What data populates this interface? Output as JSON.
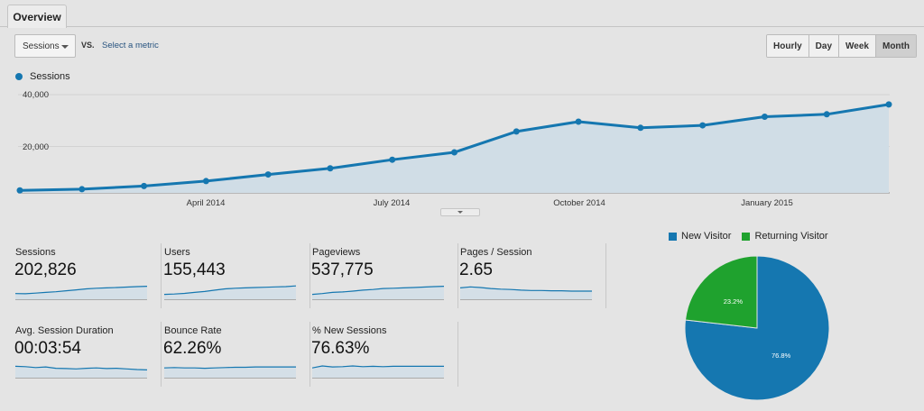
{
  "tabs": [
    {
      "label": "Overview"
    }
  ],
  "controls": {
    "metric_select": "Sessions",
    "vs_label": "VS.",
    "select_metric_link": "Select a metric",
    "granularity": [
      "Hourly",
      "Day",
      "Week",
      "Month"
    ],
    "selected_granularity": "Month"
  },
  "colors": {
    "primary": "#1577b0",
    "returning": "#1fa22e",
    "area": "#d0dde6"
  },
  "chart_data": [
    {
      "type": "area",
      "series": [
        {
          "name": "Sessions",
          "values": [
            1000,
            1500,
            2800,
            4800,
            7500,
            10000,
            13500,
            16500,
            25000,
            29000,
            26500,
            27500,
            31000,
            32000,
            36000
          ]
        }
      ],
      "y_ticks": [
        "40,000",
        "20,000"
      ],
      "ylim": [
        0,
        40000
      ],
      "x_tick_labels": [
        "April 2014",
        "July 2014",
        "October 2014",
        "January 2015"
      ],
      "grid": true
    },
    {
      "type": "pie",
      "slices": [
        {
          "name": "New Visitor",
          "value": 76.8,
          "label": "76.8%",
          "color": "#1577b0"
        },
        {
          "name": "Returning Visitor",
          "value": 23.2,
          "label": "23.2%",
          "color": "#1fa22e"
        }
      ],
      "legend": "top"
    }
  ],
  "metrics": [
    {
      "label": "Sessions",
      "value": "202,826",
      "trend": [
        0.35,
        0.34,
        0.38,
        0.42,
        0.46,
        0.52,
        0.58,
        0.64,
        0.68,
        0.7,
        0.72,
        0.75,
        0.78,
        0.8
      ]
    },
    {
      "label": "Users",
      "value": "155,443",
      "trend": [
        0.3,
        0.32,
        0.36,
        0.42,
        0.48,
        0.56,
        0.64,
        0.68,
        0.7,
        0.72,
        0.74,
        0.76,
        0.78,
        0.82
      ]
    },
    {
      "label": "Pageviews",
      "value": "537,775",
      "trend": [
        0.3,
        0.35,
        0.42,
        0.45,
        0.5,
        0.56,
        0.6,
        0.66,
        0.68,
        0.7,
        0.72,
        0.75,
        0.78,
        0.8
      ]
    },
    {
      "label": "Pages / Session",
      "value": "2.65",
      "trend": [
        0.7,
        0.76,
        0.72,
        0.66,
        0.62,
        0.6,
        0.56,
        0.54,
        0.54,
        0.52,
        0.52,
        0.5,
        0.5,
        0.5
      ]
    },
    {
      "label": "Avg. Session Duration",
      "value": "00:03:54",
      "trend": [
        0.7,
        0.68,
        0.62,
        0.66,
        0.58,
        0.56,
        0.54,
        0.58,
        0.6,
        0.56,
        0.58,
        0.54,
        0.5,
        0.48
      ]
    },
    {
      "label": "Bounce Rate",
      "value": "62.26%",
      "trend": [
        0.6,
        0.62,
        0.6,
        0.6,
        0.58,
        0.6,
        0.62,
        0.64,
        0.64,
        0.66,
        0.66,
        0.66,
        0.66,
        0.66
      ]
    },
    {
      "label": "% New Sessions",
      "value": "76.63%",
      "trend": [
        0.6,
        0.72,
        0.66,
        0.68,
        0.72,
        0.68,
        0.7,
        0.68,
        0.7,
        0.7,
        0.7,
        0.7,
        0.7,
        0.7
      ]
    }
  ]
}
